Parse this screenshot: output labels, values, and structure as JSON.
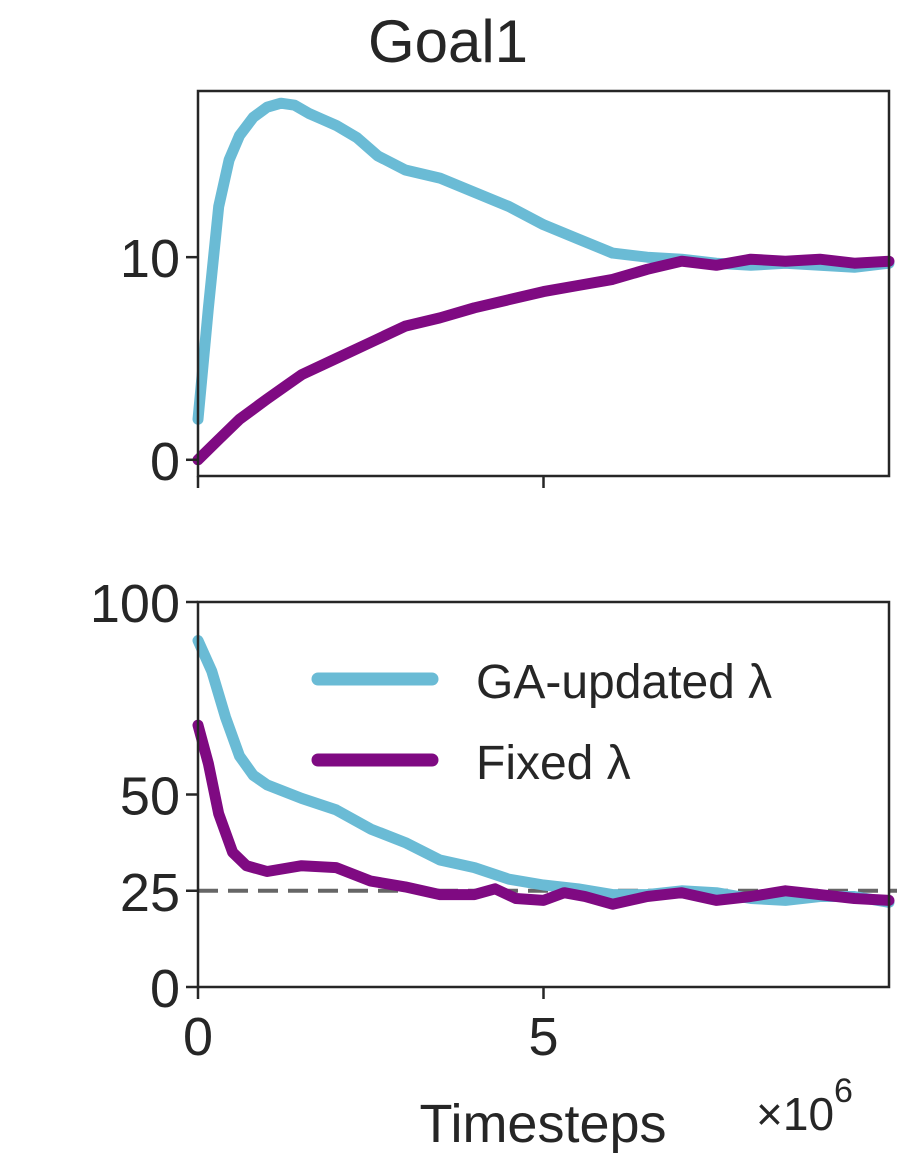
{
  "title": "Goal1",
  "xlabel": "Timesteps",
  "x_scale_label": "×10",
  "x_scale_exponent": "6",
  "colors": {
    "ga": "#6abbd5",
    "fixed": "#7f0a82",
    "reference": "#666666",
    "axes": "#262626"
  },
  "legend": {
    "placement": "upper-right of lower panel",
    "items": [
      "GA-updated λ",
      "Fixed λ"
    ]
  },
  "chart_data": [
    {
      "type": "line",
      "panel": "top",
      "title": "Goal1",
      "xlabel": "",
      "ylabel": "",
      "xlim": [
        0,
        10
      ],
      "ylim": [
        -0.8,
        18.2
      ],
      "x_ticks": [
        0,
        5
      ],
      "x_tick_labels_visible": false,
      "y_ticks": [
        0,
        10
      ],
      "y_tick_labels": [
        "0",
        "10"
      ],
      "series": [
        {
          "name": "GA-updated λ",
          "color": "#6abbd5",
          "x": [
            0,
            0.15,
            0.3,
            0.45,
            0.6,
            0.8,
            1.0,
            1.2,
            1.4,
            1.6,
            1.8,
            2.0,
            2.3,
            2.6,
            3.0,
            3.5,
            4.0,
            4.5,
            5.0,
            5.5,
            6.0,
            6.5,
            7.0,
            7.5,
            8.0,
            8.5,
            9.0,
            9.5,
            10.0
          ],
          "values": [
            2.0,
            7.5,
            12.5,
            14.8,
            16.0,
            16.9,
            17.4,
            17.6,
            17.5,
            17.1,
            16.8,
            16.5,
            15.9,
            15.0,
            14.3,
            13.9,
            13.2,
            12.5,
            11.6,
            10.9,
            10.2,
            10.0,
            9.9,
            9.7,
            9.6,
            9.7,
            9.6,
            9.5,
            9.7
          ]
        },
        {
          "name": "Fixed λ",
          "color": "#7f0a82",
          "x": [
            0,
            0.3,
            0.6,
            1.0,
            1.5,
            2.0,
            2.5,
            3.0,
            3.5,
            4.0,
            4.5,
            5.0,
            5.5,
            6.0,
            6.5,
            7.0,
            7.5,
            8.0,
            8.5,
            9.0,
            9.5,
            10.0
          ],
          "values": [
            0.0,
            1.0,
            2.0,
            3.0,
            4.2,
            5.0,
            5.8,
            6.6,
            7.0,
            7.5,
            7.9,
            8.3,
            8.6,
            8.9,
            9.4,
            9.8,
            9.6,
            9.9,
            9.8,
            9.9,
            9.7,
            9.8
          ]
        }
      ]
    },
    {
      "type": "line",
      "panel": "bottom",
      "xlabel": "Timesteps",
      "ylabel": "",
      "xlim": [
        0,
        10
      ],
      "ylim": [
        0,
        100
      ],
      "x_ticks": [
        0,
        5
      ],
      "x_tick_labels": [
        "0",
        "5"
      ],
      "y_ticks": [
        0,
        25,
        50,
        100
      ],
      "y_tick_labels": [
        "0",
        "25",
        "50",
        "100"
      ],
      "reference_line": {
        "y": 25,
        "style": "dashed",
        "color": "#666666"
      },
      "series": [
        {
          "name": "GA-updated λ",
          "color": "#6abbd5",
          "x": [
            0,
            0.2,
            0.4,
            0.6,
            0.8,
            1.0,
            1.5,
            2.0,
            2.5,
            3.0,
            3.5,
            4.0,
            4.5,
            5.0,
            5.5,
            6.0,
            6.5,
            7.0,
            7.5,
            8.0,
            8.5,
            9.0,
            9.5,
            10.0
          ],
          "values": [
            90.0,
            82.0,
            70.0,
            60.0,
            55.0,
            52.5,
            49.0,
            46.0,
            41.0,
            37.5,
            33.0,
            31.0,
            28.0,
            26.5,
            25.5,
            24.0,
            24.0,
            25.0,
            24.5,
            23.0,
            22.5,
            23.5,
            23.5,
            22.0
          ]
        },
        {
          "name": "Fixed λ",
          "color": "#7f0a82",
          "x": [
            0,
            0.15,
            0.3,
            0.5,
            0.7,
            1.0,
            1.5,
            2.0,
            2.5,
            3.0,
            3.5,
            4.0,
            4.3,
            4.6,
            5.0,
            5.3,
            5.6,
            6.0,
            6.5,
            7.0,
            7.5,
            8.0,
            8.5,
            9.0,
            9.5,
            10.0
          ],
          "values": [
            68.0,
            58.0,
            45.0,
            35.0,
            31.5,
            30.0,
            31.5,
            31.0,
            27.5,
            26.0,
            24.0,
            24.0,
            25.5,
            23.0,
            22.5,
            24.5,
            23.5,
            21.5,
            23.5,
            24.5,
            22.5,
            23.5,
            25.0,
            24.0,
            23.0,
            22.5
          ]
        }
      ]
    }
  ]
}
